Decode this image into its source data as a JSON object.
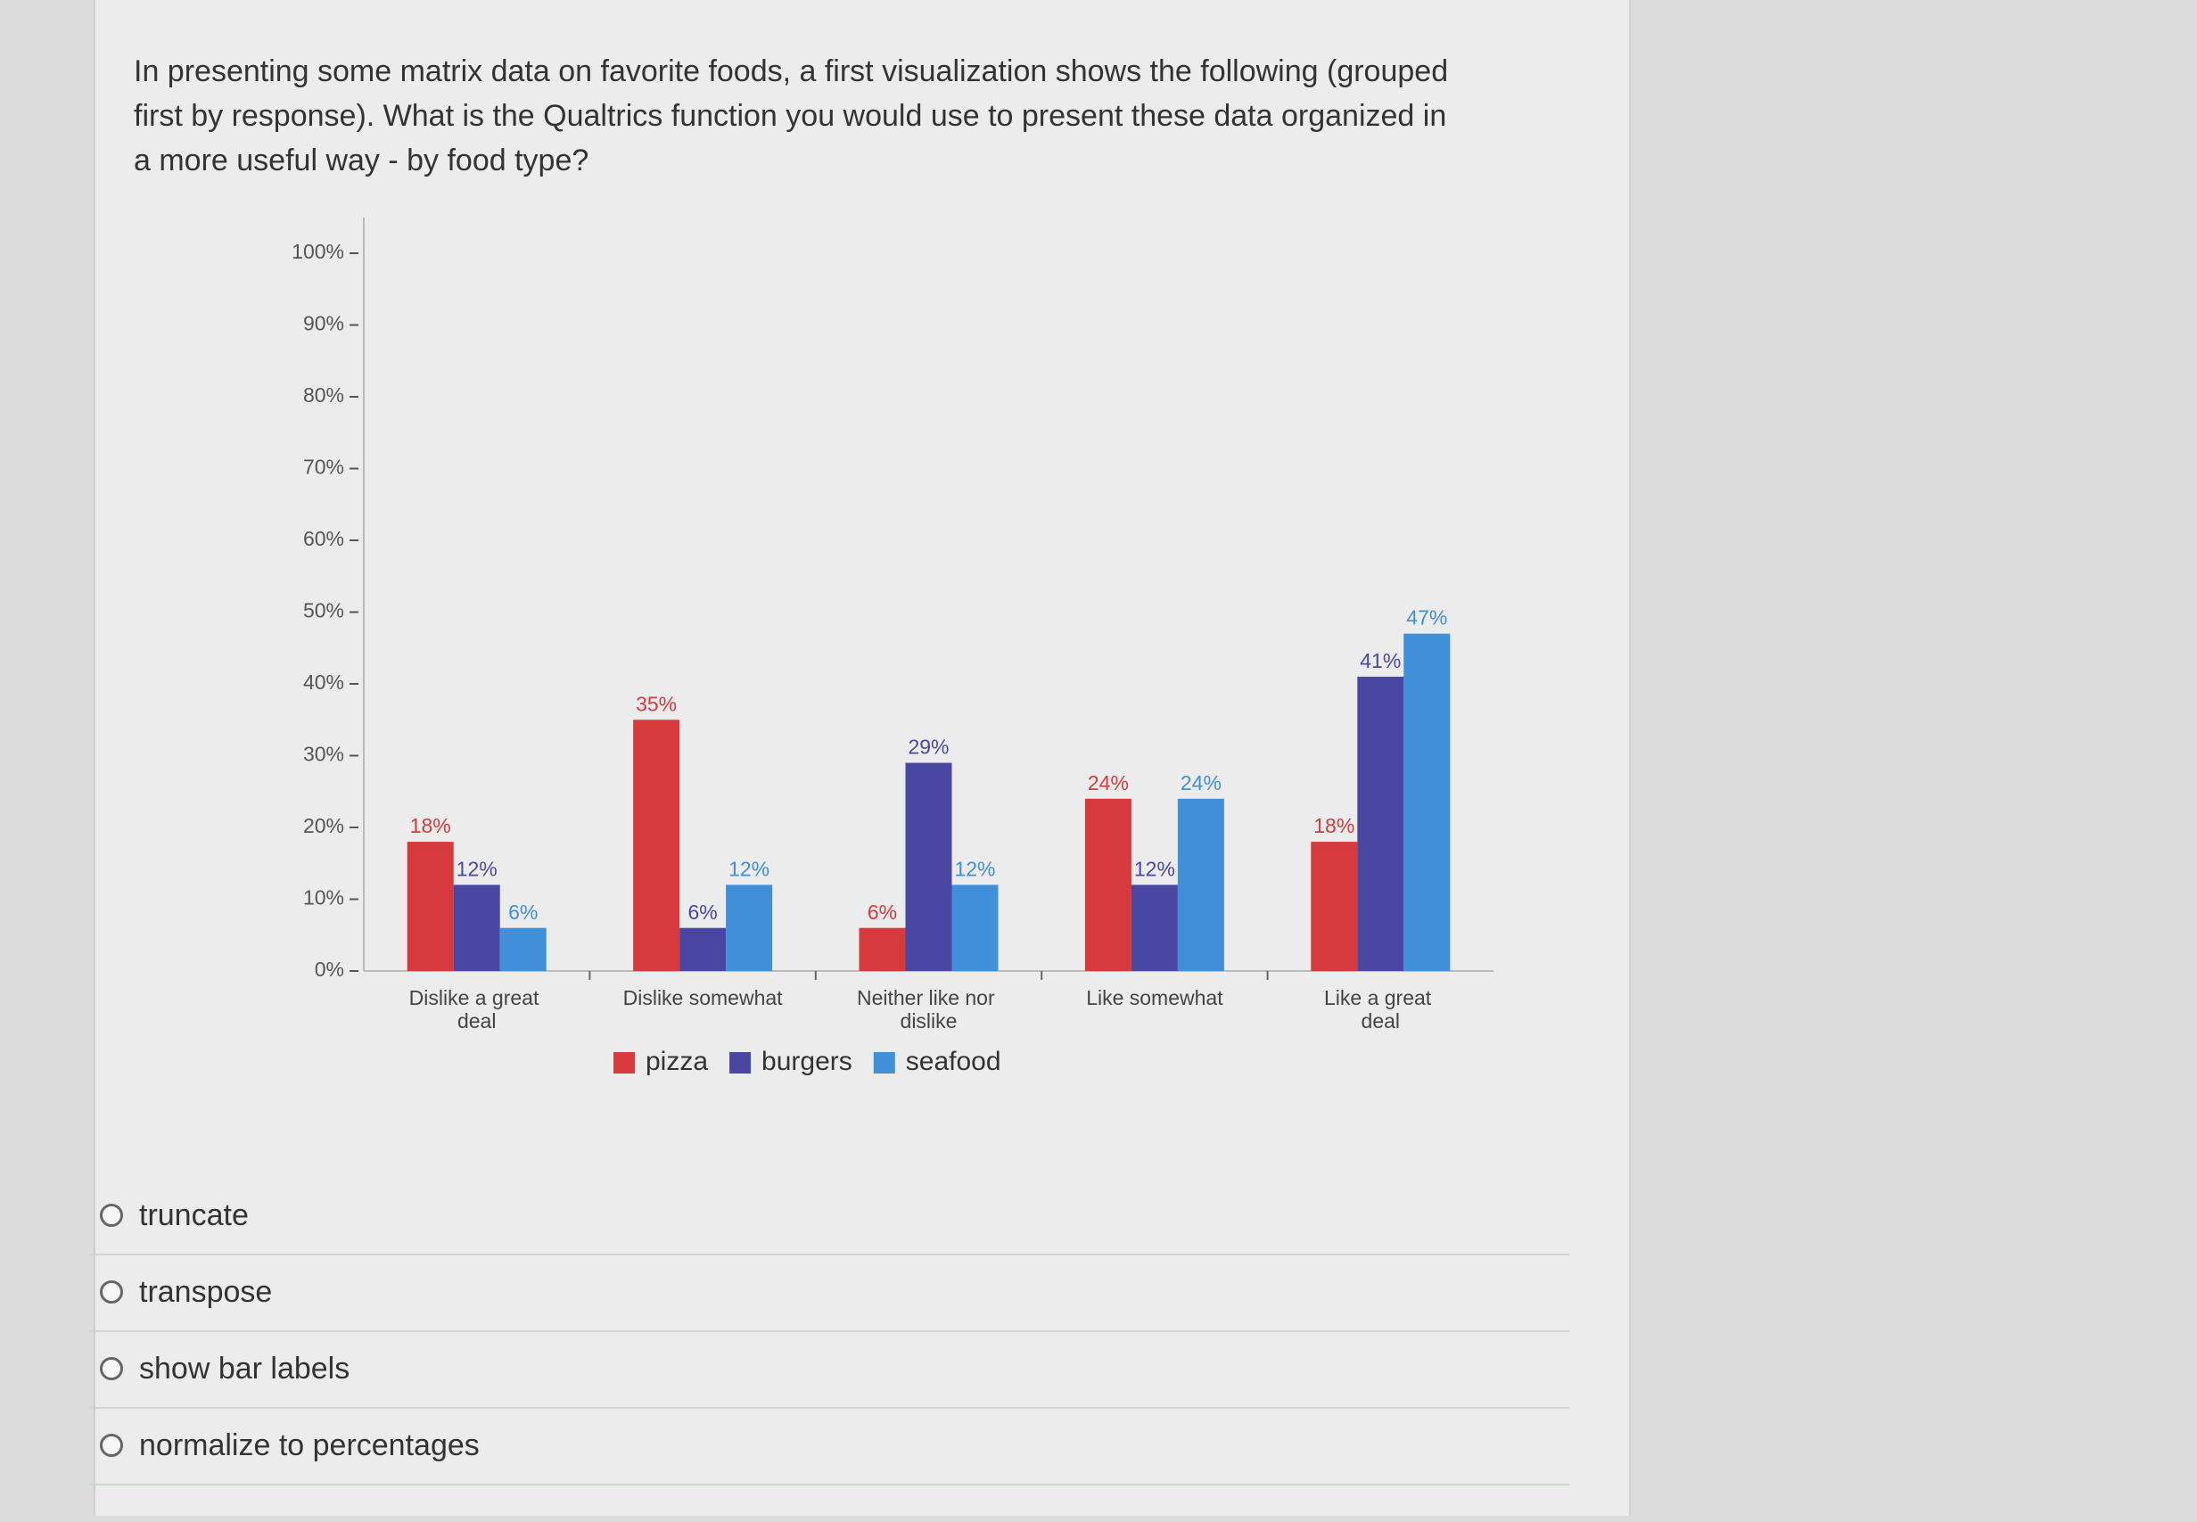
{
  "question": {
    "text": "In presenting some matrix data on favorite foods, a first visualization shows the following (grouped first by response).  What is the Qualtrics function you would use to present these data organized in a more useful way - by food type?"
  },
  "chart_data": {
    "type": "bar",
    "categories": [
      "Dislike a great deal",
      "Dislike somewhat",
      "Neither like nor dislike",
      "Like somewhat",
      "Like a great deal"
    ],
    "series": [
      {
        "name": "pizza",
        "color": "#d63a3c",
        "values": [
          18,
          35,
          6,
          24,
          18
        ],
        "value_labels": [
          "18%",
          "35%",
          "6%",
          "24%",
          "18%"
        ]
      },
      {
        "name": "burgers",
        "color": "#4a47a3",
        "values": [
          12,
          6,
          29,
          12,
          41
        ],
        "value_labels": [
          "12%",
          "6%",
          "29%",
          "12%",
          "41%"
        ]
      },
      {
        "name": "seafood",
        "color": "#3f8fd9",
        "values": [
          6,
          12,
          12,
          24,
          47
        ],
        "value_labels": [
          "6%",
          "12%",
          "12%",
          "24%",
          "47%"
        ]
      }
    ],
    "ylim": [
      0,
      100
    ],
    "yticks": [
      {
        "value": 0,
        "label": "0%"
      },
      {
        "value": 10,
        "label": "10%"
      },
      {
        "value": 20,
        "label": "20%"
      },
      {
        "value": 30,
        "label": "30%"
      },
      {
        "value": 40,
        "label": "40%"
      },
      {
        "value": 50,
        "label": "50%"
      },
      {
        "value": 60,
        "label": "60%"
      },
      {
        "value": 70,
        "label": "70%"
      },
      {
        "value": 80,
        "label": "80%"
      },
      {
        "value": 90,
        "label": "90%"
      },
      {
        "value": 100,
        "label": "100%"
      }
    ],
    "legend": "bottom"
  },
  "options": [
    "truncate",
    "transpose",
    "show bar labels",
    "normalize to percentages"
  ]
}
